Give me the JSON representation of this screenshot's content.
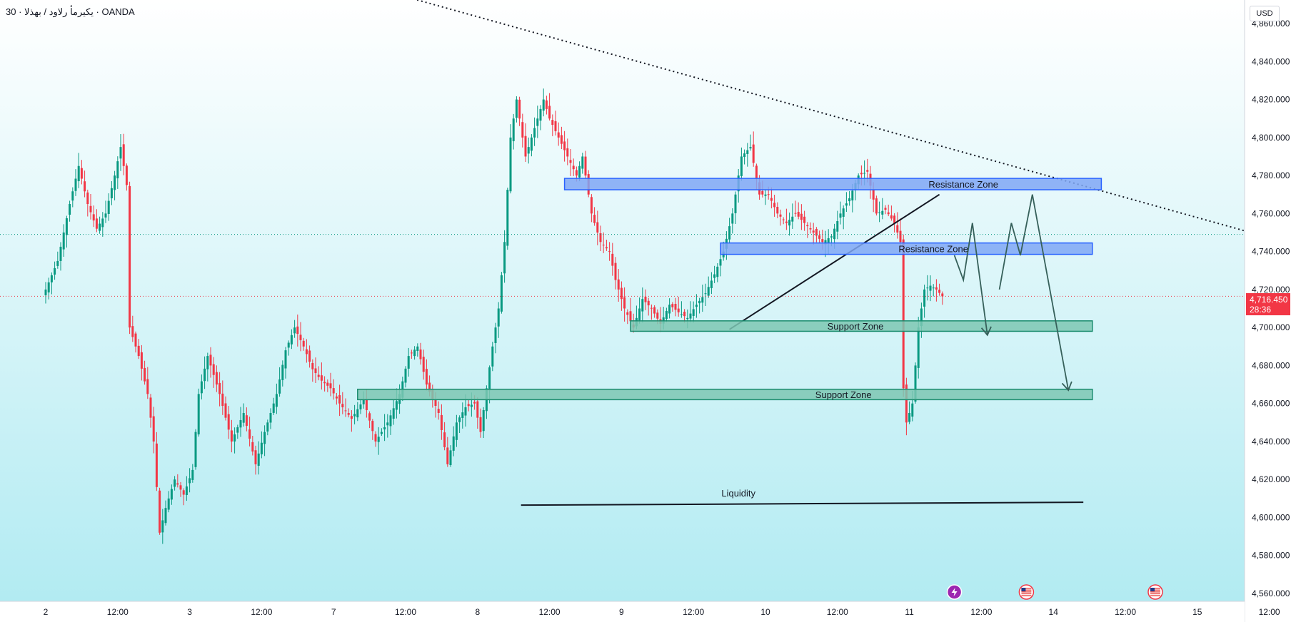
{
  "header": {
    "title": "يكيرمأ رلاود / بهذلا · 30 · OANDA",
    "currency": "USD"
  },
  "colors": {
    "bg_top": "#ffffff",
    "bg_bottom": "#b2ebf2",
    "bull": "#089981",
    "bear": "#f23645",
    "resistance_fill": "#7fa7f5",
    "resistance_stroke": "#2962ff",
    "support_fill": "#7cc7b3",
    "support_stroke": "#1b8c6e",
    "arrow": "#36605a",
    "price_tag": "#f23645"
  },
  "price_tag": {
    "value": "4,716.450",
    "countdown": "28:36"
  },
  "chart_data": {
    "type": "candlestick",
    "symbol": "OANDA · 30",
    "ylim": [
      4555,
      4865
    ],
    "y_ticks": [
      4860,
      4840,
      4820,
      4800,
      4780,
      4760,
      4740,
      4720,
      4700,
      4680,
      4660,
      4640,
      4620,
      4600,
      4580,
      4560
    ],
    "y_tick_labels": [
      "4,860.000",
      "4,840.000",
      "4,820.000",
      "4,800.000",
      "4,780.000",
      "4,760.000",
      "4,740.000",
      "4,720.000",
      "4,700.000",
      "4,680.000",
      "4,660.000",
      "4,640.000",
      "4,620.000",
      "4,600.000",
      "4,580.000",
      "4,560.000"
    ],
    "x_labels": [
      "2",
      "12:00",
      "3",
      "12:00",
      "7",
      "12:00",
      "8",
      "12:00",
      "9",
      "12:00",
      "10",
      "12:00",
      "11",
      "12:00",
      "14",
      "12:00",
      "15",
      "12:00"
    ],
    "x_label_index": [
      0,
      24,
      48,
      72,
      96,
      120,
      144,
      168,
      192,
      216,
      240,
      264,
      288,
      312,
      336,
      360,
      384,
      408
    ],
    "last_price": 4716.45,
    "reference_price": 4749,
    "path_keypoints": [
      [
        0,
        4720
      ],
      [
        4,
        4735
      ],
      [
        8,
        4765
      ],
      [
        11,
        4785
      ],
      [
        14,
        4765
      ],
      [
        17,
        4752
      ],
      [
        20,
        4760
      ],
      [
        23,
        4780
      ],
      [
        25,
        4795
      ],
      [
        27,
        4775
      ],
      [
        28,
        4700
      ],
      [
        31,
        4685
      ],
      [
        34,
        4665
      ],
      [
        36,
        4640
      ],
      [
        38,
        4592
      ],
      [
        40,
        4605
      ],
      [
        43,
        4620
      ],
      [
        46,
        4612
      ],
      [
        49,
        4625
      ],
      [
        51,
        4665
      ],
      [
        54,
        4685
      ],
      [
        58,
        4665
      ],
      [
        62,
        4640
      ],
      [
        66,
        4655
      ],
      [
        70,
        4628
      ],
      [
        73,
        4645
      ],
      [
        77,
        4665
      ],
      [
        80,
        4688
      ],
      [
        83,
        4700
      ],
      [
        86,
        4690
      ],
      [
        89,
        4678
      ],
      [
        92,
        4672
      ],
      [
        95,
        4668
      ],
      [
        98,
        4660
      ],
      [
        102,
        4652
      ],
      [
        106,
        4662
      ],
      [
        110,
        4640
      ],
      [
        114,
        4650
      ],
      [
        118,
        4665
      ],
      [
        121,
        4685
      ],
      [
        124,
        4690
      ],
      [
        127,
        4670
      ],
      [
        131,
        4655
      ],
      [
        134,
        4628
      ],
      [
        137,
        4650
      ],
      [
        140,
        4658
      ],
      [
        143,
        4660
      ],
      [
        145,
        4645
      ],
      [
        147,
        4668
      ],
      [
        149,
        4690
      ],
      [
        151,
        4710
      ],
      [
        153,
        4745
      ],
      [
        155,
        4800
      ],
      [
        157,
        4820
      ],
      [
        160,
        4790
      ],
      [
        163,
        4805
      ],
      [
        166,
        4820
      ],
      [
        168,
        4810
      ],
      [
        171,
        4800
      ],
      [
        174,
        4790
      ],
      [
        177,
        4780
      ],
      [
        179,
        4790
      ],
      [
        182,
        4760
      ],
      [
        185,
        4745
      ],
      [
        188,
        4740
      ],
      [
        190,
        4725
      ],
      [
        193,
        4710
      ],
      [
        196,
        4700
      ],
      [
        199,
        4715
      ],
      [
        202,
        4710
      ],
      [
        205,
        4702
      ],
      [
        208,
        4712
      ],
      [
        211,
        4708
      ],
      [
        214,
        4705
      ],
      [
        217,
        4712
      ],
      [
        220,
        4718
      ],
      [
        223,
        4728
      ],
      [
        226,
        4740
      ],
      [
        229,
        4760
      ],
      [
        232,
        4790
      ],
      [
        235,
        4795
      ],
      [
        238,
        4770
      ],
      [
        241,
        4770
      ],
      [
        244,
        4760
      ],
      [
        247,
        4755
      ],
      [
        250,
        4760
      ],
      [
        253,
        4755
      ],
      [
        256,
        4750
      ],
      [
        259,
        4745
      ],
      [
        262,
        4748
      ],
      [
        265,
        4760
      ],
      [
        268,
        4768
      ],
      [
        271,
        4780
      ],
      [
        274,
        4782
      ],
      [
        277,
        4760
      ],
      [
        280,
        4762
      ],
      [
        283,
        4755
      ],
      [
        285,
        4745
      ],
      [
        286,
        4668
      ],
      [
        287,
        4650
      ],
      [
        289,
        4660
      ],
      [
        291,
        4700
      ],
      [
        293,
        4720
      ],
      [
        295,
        4722
      ],
      [
        297,
        4720
      ],
      [
        299,
        4716.45
      ]
    ],
    "lines": {
      "trendline_dotted": {
        "from": [
          0,
          4927
        ],
        "to": [
          420,
          4742
        ]
      },
      "rising_trendline": {
        "from": [
          228,
          4699
        ],
        "to": [
          298,
          4770
        ]
      },
      "liquidity": {
        "from": [
          158.5,
          4606.5
        ],
        "to": [
          346,
          4608
        ]
      }
    },
    "zones": [
      {
        "label": "Resistance Zone",
        "type": "resistance",
        "x_start": 173,
        "x_end": 352,
        "y_low": 4772.5,
        "y_high": 4778.5,
        "label_x": 306
      },
      {
        "label": "Resistance Zone",
        "type": "resistance",
        "x_start": 225,
        "x_end": 349,
        "y_low": 4738.5,
        "y_high": 4744.5,
        "label_x": 296
      },
      {
        "label": "Support Zone",
        "type": "support",
        "x_start": 195,
        "x_end": 349,
        "y_low": 4698,
        "y_high": 4703.5,
        "label_x": 270
      },
      {
        "label": "Support Zone",
        "type": "support",
        "x_start": 104,
        "x_end": 349,
        "y_low": 4662,
        "y_high": 4667.5,
        "label_x": 266
      }
    ],
    "annotations": [
      {
        "label": "Liquidity",
        "x": 231,
        "y": 4611
      }
    ],
    "projection_paths": [
      [
        [
          303,
          4738
        ],
        [
          306,
          4725
        ],
        [
          309,
          4755
        ],
        [
          314,
          4696
        ]
      ],
      [
        [
          318,
          4720
        ],
        [
          322,
          4755
        ],
        [
          325,
          4738
        ],
        [
          329,
          4770
        ],
        [
          341,
          4667
        ]
      ]
    ],
    "event_markers": [
      {
        "icon": "lightning-icon",
        "x": 303
      },
      {
        "icon": "us-flag-icon",
        "x": 327
      },
      {
        "icon": "us-flag-icon",
        "x": 370
      }
    ]
  }
}
